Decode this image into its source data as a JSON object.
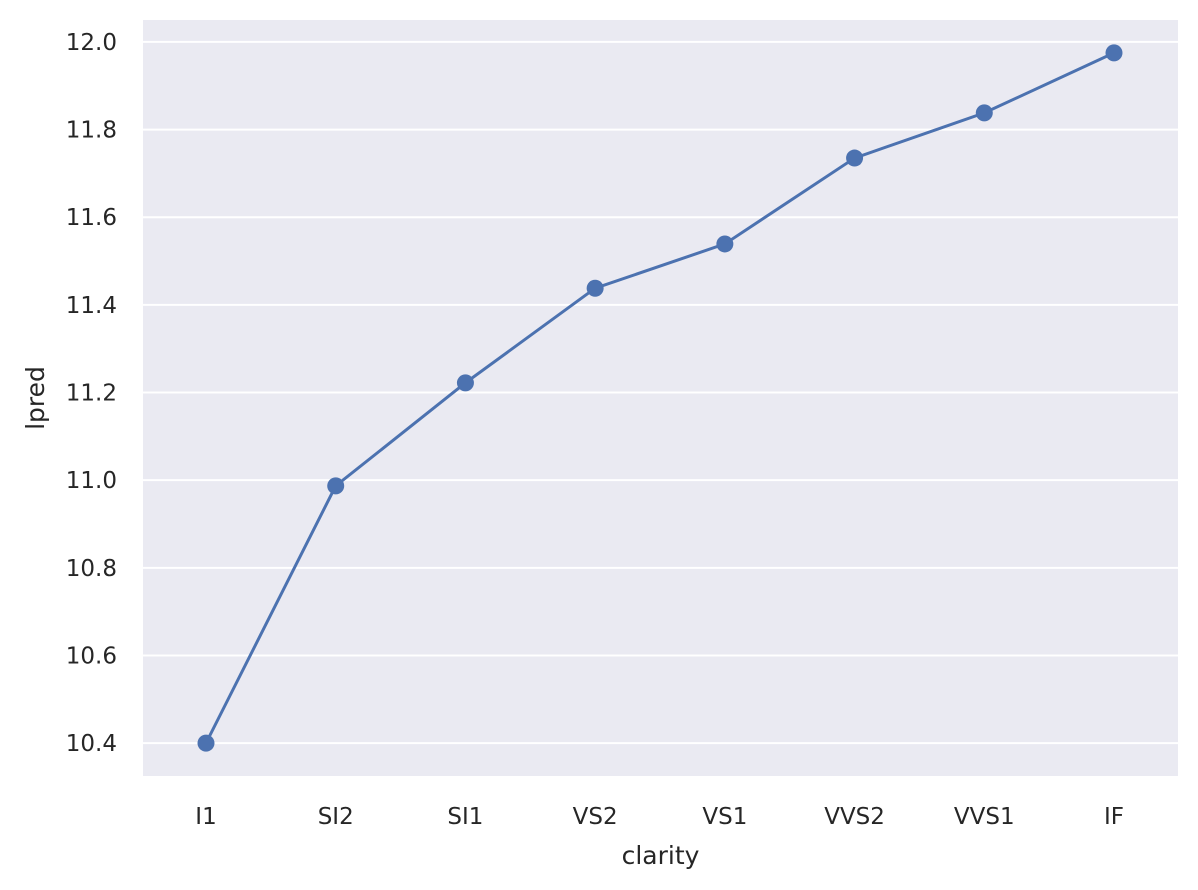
{
  "chart_data": {
    "type": "line",
    "xlabel": "clarity",
    "ylabel": "lpred",
    "categories": [
      "I1",
      "SI2",
      "SI1",
      "VS2",
      "VS1",
      "VVS2",
      "VVS1",
      "IF"
    ],
    "series": [
      {
        "values": [
          10.4,
          10.987,
          11.222,
          11.438,
          11.539,
          11.735,
          11.838,
          11.975
        ],
        "color": "#4c72b0"
      }
    ],
    "ylim": [
      10.325,
      12.05
    ],
    "yticks": [
      10.4,
      10.6,
      10.8,
      11.0,
      11.2,
      11.4,
      11.6,
      11.8,
      12.0
    ],
    "ytick_labels": [
      "10.4",
      "10.6",
      "10.8",
      "11.0",
      "11.2",
      "11.4",
      "11.6",
      "11.8",
      "12.0"
    ],
    "grid": true,
    "background": "#eaeaf2",
    "grid_color": "#ffffff"
  }
}
